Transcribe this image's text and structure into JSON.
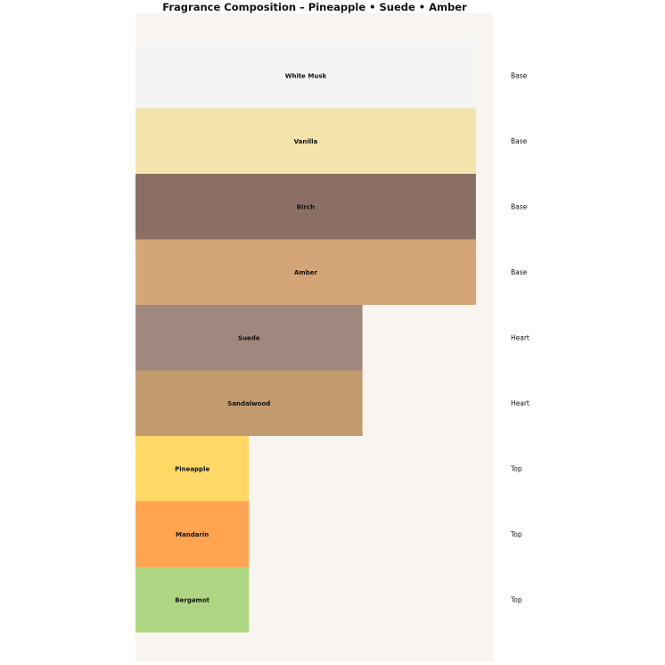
{
  "title": "Fragrance Composition – Pineapple • Suede • Amber",
  "colors": {
    "plot_background": "#f8f5f0",
    "page_background": "#ffffff"
  },
  "chart_data": {
    "type": "bar",
    "orientation": "horizontal",
    "title": "Fragrance Composition – Pineapple • Suede • Amber",
    "xlabel": "",
    "ylabel": "",
    "grid": false,
    "legend": "none",
    "xlim": [
      0,
      3.15
    ],
    "bars": [
      {
        "name": "White Musk",
        "tier": "Base",
        "value": 3,
        "color": "#f4f4f4"
      },
      {
        "name": "Vanilla",
        "tier": "Base",
        "value": 3,
        "color": "#f3e4ac"
      },
      {
        "name": "Birch",
        "tier": "Base",
        "value": 3,
        "color": "#8b6f64"
      },
      {
        "name": "Amber",
        "tier": "Base",
        "value": 3,
        "color": "#d4a677"
      },
      {
        "name": "Suede",
        "tier": "Heart",
        "value": 2,
        "color": "#a1887f"
      },
      {
        "name": "Sandalwood",
        "tier": "Heart",
        "value": 2,
        "color": "#c19a6d"
      },
      {
        "name": "Pineapple",
        "tier": "Top",
        "value": 1,
        "color": "#ffd866"
      },
      {
        "name": "Mandarin",
        "tier": "Top",
        "value": 1,
        "color": "#ffa552"
      },
      {
        "name": "Bergamot",
        "tier": "Top",
        "value": 1,
        "color": "#aed581"
      }
    ]
  }
}
